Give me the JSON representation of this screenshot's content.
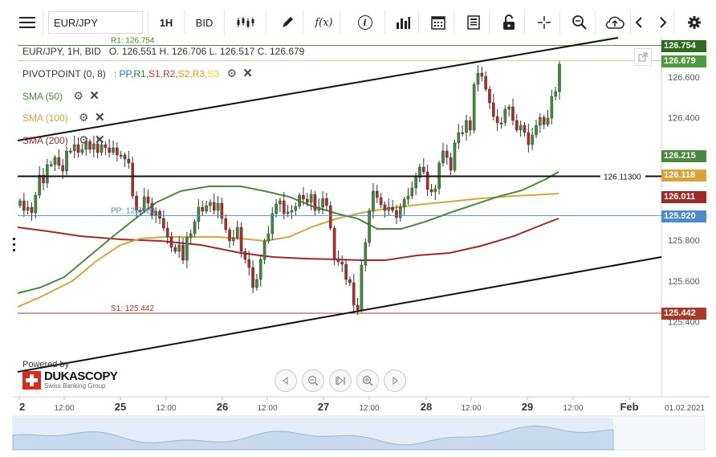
{
  "toolbar": {
    "symbol": "EUR/JPY",
    "timeframe": "1H",
    "side": "BID",
    "icons": [
      "menu-icon",
      "candles-icon",
      "draw-icon",
      "function-icon",
      "info-icon",
      "volume-icon",
      "calendar-icon",
      "report-icon",
      "lock-icon",
      "crosshair-icon",
      "zoom-icon",
      "upload-icon",
      "chevron-left-icon",
      "chevron-right-icon",
      "gear-icon"
    ],
    "function_label": "f(x)",
    "info_label": "i"
  },
  "legend": {
    "header": "EUR/JPY, 1H, BID",
    "ohlc": "O. 126.551 H. 126.706 L. 126.517 C. 126.679",
    "pivot_name": "PIVOTPOINT (0, 8)",
    "pivot_sep": ":",
    "pivot_levels": [
      {
        "label": "PP,",
        "color": "#1e6fd9"
      },
      {
        "label": "R1,",
        "color": "#2a7d2e"
      },
      {
        "label": "S1,",
        "color": "#c0392b"
      },
      {
        "label": "R2,",
        "color": "#c0392b"
      },
      {
        "label": "S2,",
        "color": "#e59c1a"
      },
      {
        "label": "R3,",
        "color": "#e59c1a"
      },
      {
        "label": "S3",
        "color": "#e8d21a"
      }
    ],
    "sma50": "SMA (50)",
    "sma100": "SMA (100)",
    "sma200": "SMA (200)"
  },
  "colors": {
    "sma50": "#4b8a3e",
    "sma100": "#d8a43a",
    "sma200": "#9c2a2a",
    "bull": "#3d8a3d",
    "bear": "#b02a2a",
    "pp": "#4a8ac9",
    "r1": "#4b7d3a",
    "s1": "#a33a2a"
  },
  "chart_data": {
    "type": "candlestick",
    "symbol": "EUR/JPY",
    "interval": "1H",
    "x_ticks": [
      "2",
      "12:00",
      "25",
      "12:00",
      "26",
      "12:00",
      "27",
      "12:00",
      "28",
      "12:00",
      "29",
      "12:00",
      "Feb"
    ],
    "x_axis_end": "01.02.2021",
    "y_ticks": [
      "125.400",
      "125.600",
      "125.800",
      "126.000",
      "126.200",
      "126.400",
      "126.600"
    ],
    "ylim": [
      125.36,
      126.8
    ],
    "last_close": 126.679,
    "sma50": 126.215,
    "sma100": 126.118,
    "sma200": 126.011,
    "pivot_pp": 125.92,
    "pivot_r1": 126.754,
    "pivot_s1": 125.442,
    "horizontal_line": 126.113,
    "labels": {
      "r1": "R1: 126.754",
      "pp": "PP: 125.920",
      "s1": "S1: 125.442",
      "hline": "126.11300"
    },
    "price_tags": [
      {
        "value": "126.754",
        "color": "#2f6b1e"
      },
      {
        "value": "126.679",
        "color": "#4f9a3e"
      },
      {
        "value": "126.215",
        "color": "#4b8a3e"
      },
      {
        "value": "126.118",
        "color": "#d8a43a"
      },
      {
        "value": "126.011",
        "color": "#9c2a2a"
      },
      {
        "value": "125.920",
        "color": "#4a8ac9"
      },
      {
        "value": "125.442",
        "color": "#a33a2a"
      }
    ]
  },
  "branding": {
    "powered_by": "Powered by",
    "name": "DUKASCOPY",
    "tagline": "Swiss Banking Group"
  },
  "nav_buttons": [
    "scroll-left",
    "zoom-out",
    "reset",
    "zoom-in",
    "scroll-right"
  ]
}
